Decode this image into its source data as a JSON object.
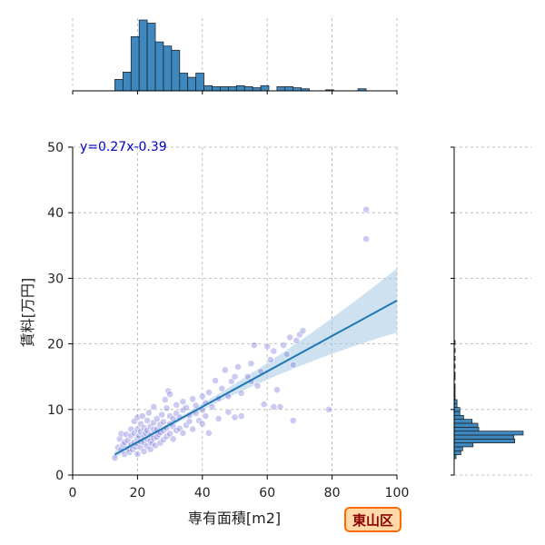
{
  "chart_data": {
    "type": "scatter",
    "title": "",
    "xlabel": "専有面積[m2]",
    "ylabel": "賃料[万円]",
    "xlim": [
      0,
      100
    ],
    "ylim": [
      0,
      50
    ],
    "x_ticks": [
      0,
      20,
      40,
      60,
      80,
      100
    ],
    "y_ticks": [
      0,
      10,
      20,
      30,
      40,
      50
    ],
    "grid": true,
    "equation_label": "y=0.27x-0.39",
    "regression": {
      "slope": 0.27,
      "intercept": -0.39,
      "x_start": 13,
      "x_end": 100
    },
    "badge": "東山区",
    "colors": {
      "points": "#6a6ad8",
      "regression_line": "#1f77b4",
      "confidence_band": "#a6c8e6",
      "histogram": "#3f87bf",
      "equation": "#0000cc",
      "badge_fill": "#ffd9a8",
      "badge_border": "#ff6a00",
      "badge_text": "#8b0000"
    },
    "points": [
      [
        13,
        2.6
      ],
      [
        14,
        4.2
      ],
      [
        14.5,
        5.5
      ],
      [
        15,
        3.8
      ],
      [
        15,
        6.3
      ],
      [
        15.5,
        4.6
      ],
      [
        16,
        3.2
      ],
      [
        16,
        5.0
      ],
      [
        16.5,
        6.2
      ],
      [
        17,
        4.0
      ],
      [
        17,
        5.3
      ],
      [
        17.5,
        3.5
      ],
      [
        18,
        4.6
      ],
      [
        18,
        6.0
      ],
      [
        18,
        7.0
      ],
      [
        18.5,
        3.9
      ],
      [
        19,
        5.0
      ],
      [
        19,
        6.4
      ],
      [
        19,
        8.2
      ],
      [
        19.5,
        4.3
      ],
      [
        20,
        3.2
      ],
      [
        20,
        4.8
      ],
      [
        20,
        5.6
      ],
      [
        20,
        7.0
      ],
      [
        20,
        8.8
      ],
      [
        20.5,
        6.0
      ],
      [
        21,
        4.2
      ],
      [
        21,
        5.1
      ],
      [
        21,
        6.6
      ],
      [
        21,
        7.8
      ],
      [
        21.5,
        9.0
      ],
      [
        22,
        3.6
      ],
      [
        22,
        4.9
      ],
      [
        22,
        5.9
      ],
      [
        22,
        7.2
      ],
      [
        22.5,
        6.4
      ],
      [
        23,
        4.4
      ],
      [
        23,
        5.5
      ],
      [
        23,
        6.8
      ],
      [
        23,
        8.3
      ],
      [
        23.5,
        9.5
      ],
      [
        24,
        3.9
      ],
      [
        24,
        5.2
      ],
      [
        24,
        6.1
      ],
      [
        24,
        7.4
      ],
      [
        24.5,
        4.8
      ],
      [
        25,
        5.6
      ],
      [
        25,
        6.9
      ],
      [
        25,
        8.0
      ],
      [
        25,
        10.4
      ],
      [
        25.5,
        4.5
      ],
      [
        26,
        5.8
      ],
      [
        26,
        7.0
      ],
      [
        26,
        8.6
      ],
      [
        26.5,
        6.2
      ],
      [
        27,
        4.9
      ],
      [
        27,
        6.5
      ],
      [
        27,
        7.7
      ],
      [
        27.5,
        9.2
      ],
      [
        28,
        5.4
      ],
      [
        28,
        6.8
      ],
      [
        28,
        8.1
      ],
      [
        28.5,
        11.5
      ],
      [
        29,
        5.9
      ],
      [
        29,
        7.2
      ],
      [
        29,
        10.2
      ],
      [
        29.5,
        12.8
      ],
      [
        30,
        6.3
      ],
      [
        30,
        7.8
      ],
      [
        30,
        9.0
      ],
      [
        30,
        12.3
      ],
      [
        31,
        5.5
      ],
      [
        31,
        7.4
      ],
      [
        31,
        8.6
      ],
      [
        32,
        6.8
      ],
      [
        32,
        9.4
      ],
      [
        32,
        10.7
      ],
      [
        33,
        7.1
      ],
      [
        33,
        8.8
      ],
      [
        34,
        6.4
      ],
      [
        34,
        9.9
      ],
      [
        34,
        11.2
      ],
      [
        35,
        7.6
      ],
      [
        35,
        10.3
      ],
      [
        36,
        8.2
      ],
      [
        36,
        9.1
      ],
      [
        37,
        7.0
      ],
      [
        37,
        11.6
      ],
      [
        38,
        9.4
      ],
      [
        38,
        10.6
      ],
      [
        39,
        8.3
      ],
      [
        40,
        9.9
      ],
      [
        40,
        12.0
      ],
      [
        40,
        7.8
      ],
      [
        41,
        11.0
      ],
      [
        41,
        9.0
      ],
      [
        42,
        6.4
      ],
      [
        42,
        12.6
      ],
      [
        43,
        10.4
      ],
      [
        44,
        14.4
      ],
      [
        45,
        8.6
      ],
      [
        45,
        11.7
      ],
      [
        46,
        13.2
      ],
      [
        47,
        16.0
      ],
      [
        48,
        9.6
      ],
      [
        48,
        12.0
      ],
      [
        49,
        14.3
      ],
      [
        50,
        8.8
      ],
      [
        50,
        15.0
      ],
      [
        51,
        16.5
      ],
      [
        52,
        9.0
      ],
      [
        52,
        12.5
      ],
      [
        54,
        15.0
      ],
      [
        55,
        14.3
      ],
      [
        55,
        17.0
      ],
      [
        56,
        19.8
      ],
      [
        57,
        13.6
      ],
      [
        58,
        15.8
      ],
      [
        59,
        10.8
      ],
      [
        60,
        19.6
      ],
      [
        61,
        17.6
      ],
      [
        62,
        10.4
      ],
      [
        62,
        18.9
      ],
      [
        63,
        13.0
      ],
      [
        64,
        10.4
      ],
      [
        65,
        19.8
      ],
      [
        66,
        18.4
      ],
      [
        67,
        21.0
      ],
      [
        68,
        8.3
      ],
      [
        68,
        16.8
      ],
      [
        69,
        20.5
      ],
      [
        70,
        21.4
      ],
      [
        71,
        22.0
      ],
      [
        79,
        10.0
      ],
      [
        90.5,
        40.5
      ],
      [
        90.5,
        36.0
      ]
    ],
    "x_hist": {
      "bin_width": 2.5,
      "bins": [
        {
          "x0": 13,
          "count": 11
        },
        {
          "x0": 15.5,
          "count": 18
        },
        {
          "x0": 18,
          "count": 52
        },
        {
          "x0": 20.5,
          "count": 68
        },
        {
          "x0": 23,
          "count": 65
        },
        {
          "x0": 25.5,
          "count": 47
        },
        {
          "x0": 28,
          "count": 43
        },
        {
          "x0": 30.5,
          "count": 39
        },
        {
          "x0": 33,
          "count": 17
        },
        {
          "x0": 35.5,
          "count": 13
        },
        {
          "x0": 38,
          "count": 17
        },
        {
          "x0": 40.5,
          "count": 5
        },
        {
          "x0": 43,
          "count": 4
        },
        {
          "x0": 45.5,
          "count": 4
        },
        {
          "x0": 48,
          "count": 4
        },
        {
          "x0": 50.5,
          "count": 5
        },
        {
          "x0": 53,
          "count": 4
        },
        {
          "x0": 55.5,
          "count": 3
        },
        {
          "x0": 58,
          "count": 5
        },
        {
          "x0": 63,
          "count": 4
        },
        {
          "x0": 65.5,
          "count": 4
        },
        {
          "x0": 68,
          "count": 3
        },
        {
          "x0": 70.5,
          "count": 2
        },
        {
          "x0": 78,
          "count": 1
        },
        {
          "x0": 88,
          "count": 2
        }
      ]
    },
    "y_hist": {
      "bin_width": 0.6,
      "bins": [
        {
          "y0": 2.5,
          "count": 2
        },
        {
          "y0": 3.1,
          "count": 7
        },
        {
          "y0": 3.7,
          "count": 9
        },
        {
          "y0": 4.3,
          "count": 20
        },
        {
          "y0": 4.9,
          "count": 64
        },
        {
          "y0": 5.5,
          "count": 63
        },
        {
          "y0": 6.1,
          "count": 73
        },
        {
          "y0": 6.7,
          "count": 26
        },
        {
          "y0": 7.3,
          "count": 25
        },
        {
          "y0": 7.9,
          "count": 19
        },
        {
          "y0": 8.5,
          "count": 10
        },
        {
          "y0": 9.1,
          "count": 6
        },
        {
          "y0": 9.7,
          "count": 6
        },
        {
          "y0": 10.3,
          "count": 3
        },
        {
          "y0": 10.9,
          "count": 3
        },
        {
          "y0": 11.5,
          "count": 1
        },
        {
          "y0": 12.1,
          "count": 1
        },
        {
          "y0": 12.7,
          "count": 1
        },
        {
          "y0": 13.3,
          "count": 1
        },
        {
          "y0": 14.5,
          "count": 1
        },
        {
          "y0": 15.1,
          "count": 1
        },
        {
          "y0": 16.3,
          "count": 1
        },
        {
          "y0": 17.5,
          "count": 1
        },
        {
          "y0": 18.7,
          "count": 1
        },
        {
          "y0": 19.9,
          "count": 1
        }
      ]
    }
  }
}
